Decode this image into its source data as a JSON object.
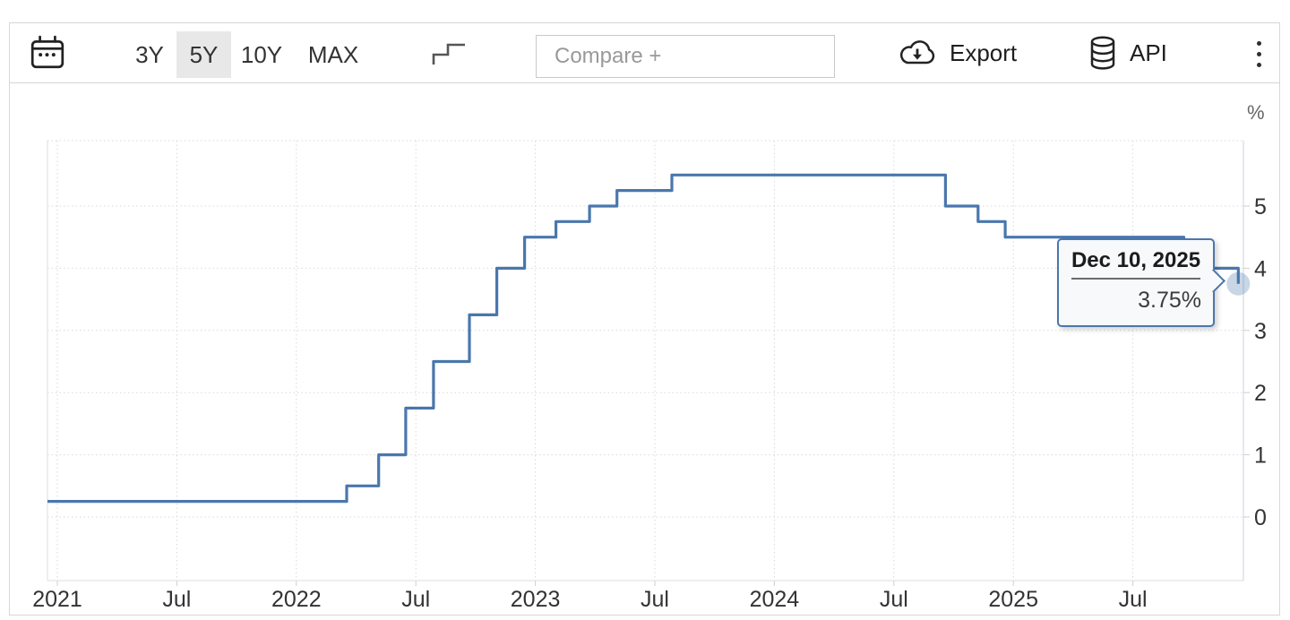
{
  "toolbar": {
    "calendar_icon": "calendar-icon",
    "ranges": [
      {
        "label": "3Y",
        "selected": false
      },
      {
        "label": "5Y",
        "selected": true
      },
      {
        "label": "10Y",
        "selected": false
      },
      {
        "label": "MAX",
        "selected": false
      }
    ],
    "step_icon": "step-line-icon",
    "compare_placeholder": "Compare +",
    "export_label": "Export",
    "export_icon": "cloud-download-icon",
    "api_label": "API",
    "api_icon": "database-icon",
    "menu_icon": "kebab-menu-icon"
  },
  "tooltip": {
    "date": "Dec 10, 2025",
    "value": "3.75%"
  },
  "colors": {
    "line": "#4a77ad",
    "selected_range_bg": "#e8e8e8",
    "grid": "#d9d9d9",
    "tooltip_bg": "#f8f9fa"
  },
  "chart_data": {
    "type": "line",
    "step": true,
    "unit_label": "%",
    "grid": "dotted",
    "legend": "off",
    "yticks": [
      0,
      1,
      2,
      3,
      4,
      5
    ],
    "ylim": [
      -1,
      6.05
    ],
    "xticks": [
      {
        "date": "2021-01-01",
        "label": "2021"
      },
      {
        "date": "2021-07-01",
        "label": "Jul"
      },
      {
        "date": "2022-01-01",
        "label": "2022"
      },
      {
        "date": "2022-07-01",
        "label": "Jul"
      },
      {
        "date": "2023-01-01",
        "label": "2023"
      },
      {
        "date": "2023-07-01",
        "label": "Jul"
      },
      {
        "date": "2024-01-01",
        "label": "2024"
      },
      {
        "date": "2024-07-01",
        "label": "Jul"
      },
      {
        "date": "2025-01-01",
        "label": "2025"
      },
      {
        "date": "2025-07-01",
        "label": "Jul"
      }
    ],
    "series": [
      {
        "color": "#4a77ad",
        "points": [
          {
            "date": "2021-01-01",
            "value": 0.25
          },
          {
            "date": "2022-03-17",
            "value": 0.5
          },
          {
            "date": "2022-05-05",
            "value": 1.0
          },
          {
            "date": "2022-06-16",
            "value": 1.75
          },
          {
            "date": "2022-07-28",
            "value": 2.5
          },
          {
            "date": "2022-09-22",
            "value": 3.25
          },
          {
            "date": "2022-11-03",
            "value": 4.0
          },
          {
            "date": "2022-12-15",
            "value": 4.5
          },
          {
            "date": "2023-02-02",
            "value": 4.75
          },
          {
            "date": "2023-03-23",
            "value": 5.0
          },
          {
            "date": "2023-05-04",
            "value": 5.25
          },
          {
            "date": "2023-07-27",
            "value": 5.5
          },
          {
            "date": "2024-09-19",
            "value": 5.0
          },
          {
            "date": "2024-11-08",
            "value": 4.75
          },
          {
            "date": "2024-12-19",
            "value": 4.5
          },
          {
            "date": "2025-09-18",
            "value": 4.25
          },
          {
            "date": "2025-10-30",
            "value": 4.0
          },
          {
            "date": "2025-12-10",
            "value": 3.75
          }
        ]
      }
    ],
    "last_point": {
      "date": "Dec 10, 2025",
      "value": 3.75
    }
  }
}
